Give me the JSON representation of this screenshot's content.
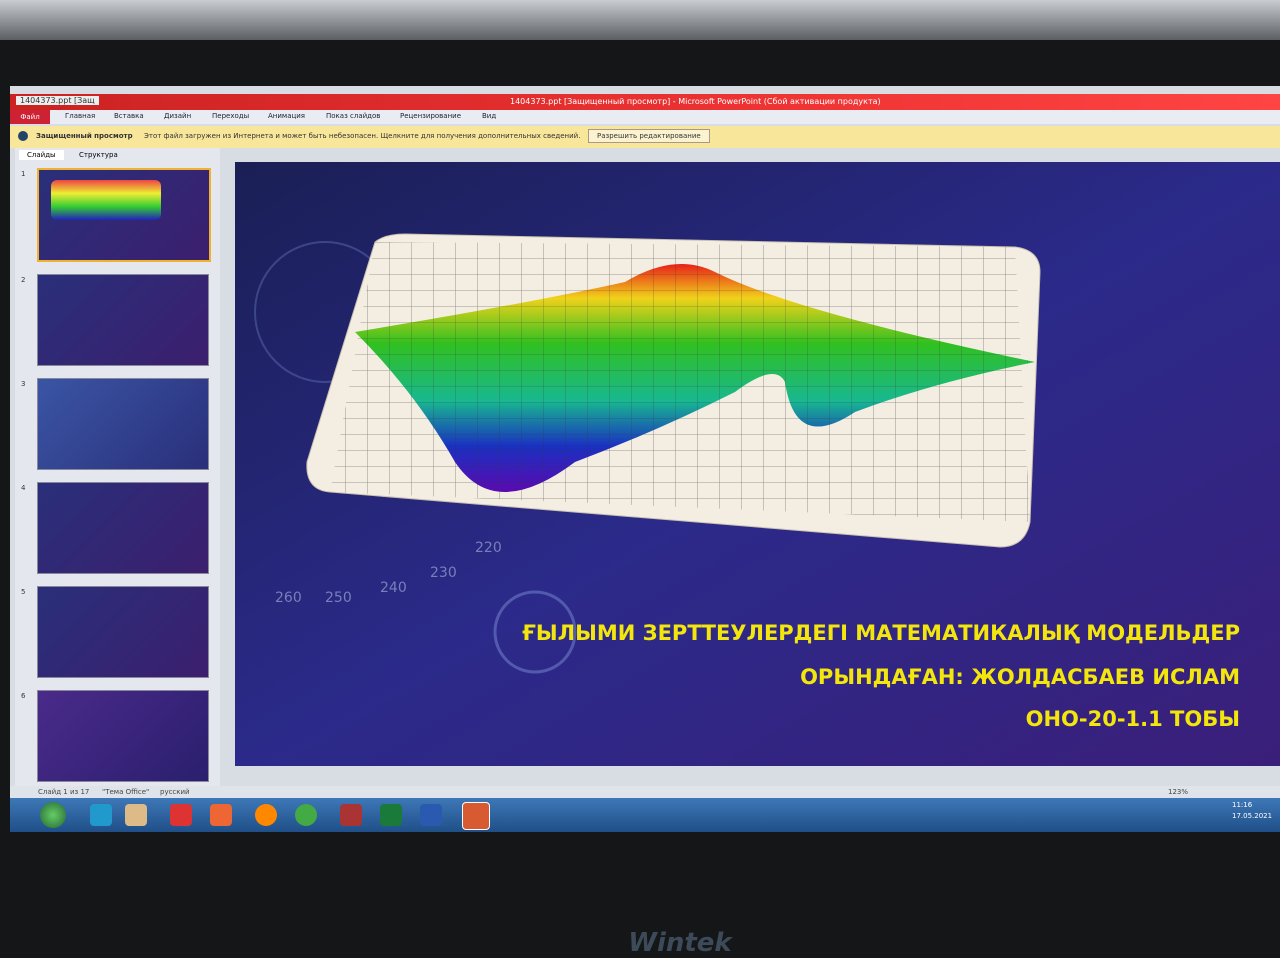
{
  "window": {
    "tab_title": "1404373.ppt [Защ",
    "title": "1404373.ppt [Защищенный просмотр] - Microsoft PowerPoint (Сбой активации продукта)"
  },
  "ribbon": {
    "tabs": [
      "Файл",
      "Главная",
      "Вставка",
      "Дизайн",
      "Переходы",
      "Анимация",
      "Показ слайдов",
      "Рецензирование",
      "Вид"
    ]
  },
  "protected_bar": {
    "label": "Защищенный просмотр",
    "message": "Этот файл загружен из Интернета и может быть небезопасен. Щелкните для получения дополнительных сведений.",
    "button": "Разрешить редактирование"
  },
  "slides_panel": {
    "tabs": [
      "Слайды",
      "Структура"
    ],
    "numbers": [
      1,
      2,
      3,
      4,
      5,
      6
    ]
  },
  "slide": {
    "lines": [
      "ҒЫЛЫМИ ЗЕРТТЕУЛЕРДЕГІ МАТЕМАТИКАЛЫҚ МОДЕЛЬДЕР",
      "ОРЫНДАҒАН: ЖОЛДАСБАЕВ ИСЛАМ",
      "ОНО-20-1.1 ТОБЫ"
    ],
    "dial_labels": [
      "260",
      "250",
      "240",
      "230",
      "220"
    ]
  },
  "status_bar": {
    "slide_info": "Слайд 1 из 17",
    "theme": "\"Тема Office\"",
    "language": "русский",
    "zoom": "123%"
  },
  "taskbar": {
    "time": "11:16",
    "date": "17.05.2021"
  },
  "monitor": {
    "brand": "Wintek"
  }
}
